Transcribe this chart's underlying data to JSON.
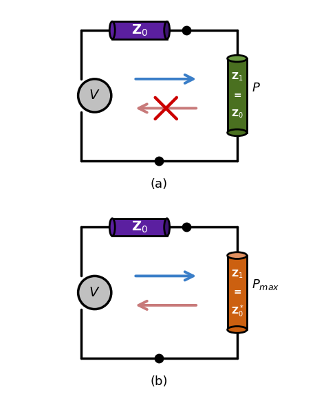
{
  "fig_width": 4.74,
  "fig_height": 5.73,
  "bg_color": "#ffffff",
  "circuit_a": {
    "label": "(a)",
    "z0_color": "#5b1fa0",
    "z0_color_dark": "#3d1470",
    "z1_color": "#4a7020",
    "z1_color_top": "#6a9a40",
    "z1_text_lines": [
      "Z$_1$",
      "=",
      "Z$_0$"
    ],
    "load_label": "$P$",
    "arrow_fwd_color": "#3a7ec8",
    "arrow_bwd_color": "#c87a7a",
    "has_cross": true,
    "cross_color": "#cc0000"
  },
  "circuit_b": {
    "label": "(b)",
    "z0_color": "#5b1fa0",
    "z0_color_dark": "#3d1470",
    "z1_color": "#cc6010",
    "z1_color_top": "#e09060",
    "z1_text_lines": [
      "Z$_1$",
      "=",
      "Z$_0^*$"
    ],
    "load_label": "$P_{max}$",
    "arrow_fwd_color": "#3a7ec8",
    "arrow_bwd_color": "#c87a7a",
    "has_cross": false
  }
}
